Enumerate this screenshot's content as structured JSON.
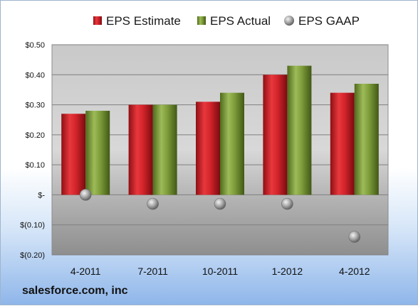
{
  "chart_data": {
    "type": "bar",
    "categories": [
      "4-2011",
      "7-2011",
      "10-2011",
      "1-2012",
      "4-2012"
    ],
    "series": [
      {
        "name": "EPS Estimate",
        "kind": "bar",
        "color": "#d2242a",
        "values": [
          0.27,
          0.3,
          0.31,
          0.4,
          0.34
        ]
      },
      {
        "name": "EPS Actual",
        "kind": "bar",
        "color": "#7e9d3a",
        "values": [
          0.28,
          0.3,
          0.34,
          0.43,
          0.37
        ]
      },
      {
        "name": "EPS GAAP",
        "kind": "marker",
        "color": "#a9a9a9",
        "values": [
          0.0,
          -0.03,
          -0.03,
          -0.03,
          -0.14
        ]
      }
    ],
    "y_ticks": [
      {
        "value": 0.5,
        "label": "$0.50"
      },
      {
        "value": 0.4,
        "label": "$0.40"
      },
      {
        "value": 0.3,
        "label": "$0.30"
      },
      {
        "value": 0.2,
        "label": "$0.20"
      },
      {
        "value": 0.1,
        "label": "$0.10"
      },
      {
        "value": 0.0,
        "label": "$-"
      },
      {
        "value": -0.1,
        "label": "$(0.10)"
      },
      {
        "value": -0.2,
        "label": "$(0.20)"
      }
    ],
    "ylim": [
      -0.2,
      0.5
    ],
    "grid": true,
    "legend_position": "top"
  },
  "footer": {
    "company": "salesforce.com, inc"
  }
}
